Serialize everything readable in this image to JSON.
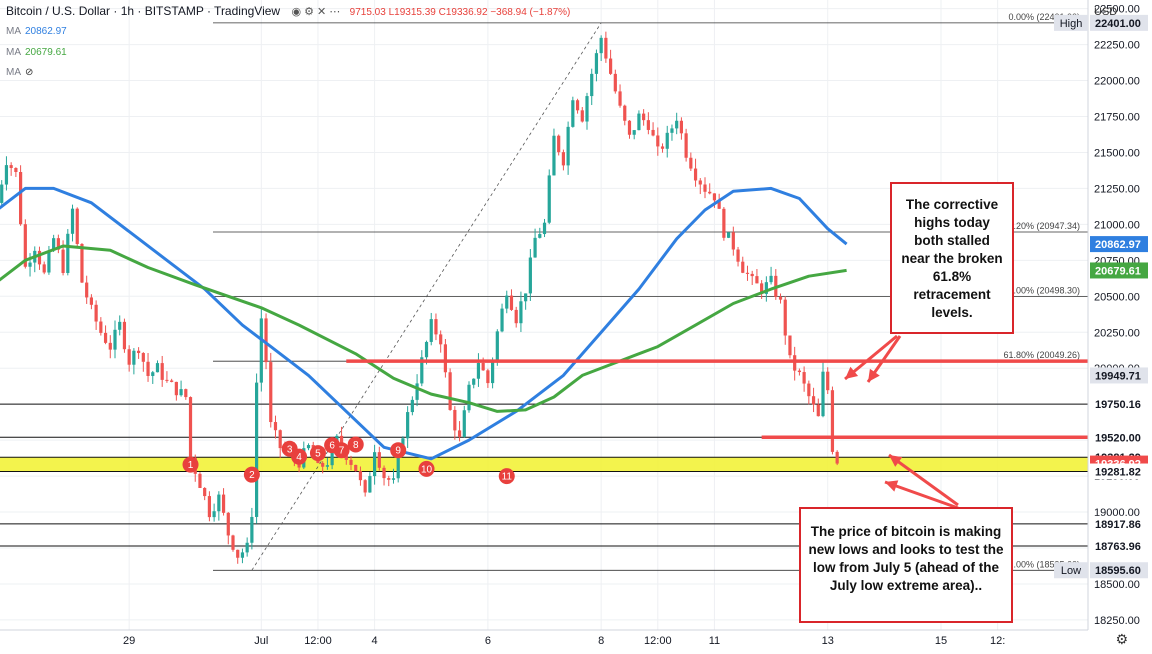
{
  "header": {
    "title": "Bitcoin / U.S. Dollar · 1h · BITSTAMP · TradingView",
    "ohlc": "9715.03 L19315.39 C19336.92 −368.94 (−1.87%)"
  },
  "indicators": [
    {
      "label": "MA",
      "value": "20862.97",
      "color": "#2f7fe0"
    },
    {
      "label": "MA",
      "value": "20679.61",
      "color": "#45a742"
    },
    {
      "label": "MA",
      "value": "",
      "color": "#888888"
    }
  ],
  "currency_label": "USD",
  "chart_data": {
    "type": "candlestick",
    "ylim": [
      18180,
      22560
    ],
    "y_ticks": [
      18250,
      18500,
      18750,
      19000,
      19250,
      19500,
      19750,
      20000,
      20250,
      20500,
      20750,
      21000,
      21250,
      21500,
      21750,
      22000,
      22250,
      22500
    ],
    "y_tick_labels": [
      "18250.00",
      "18500.00",
      "18750.00",
      "19000.00",
      "19250.00",
      "19500.00",
      "19750.00",
      "20000.00",
      "20250.00",
      "20500.00",
      "20750.00",
      "21000.00",
      "21250.00",
      "21500.00",
      "21750.00",
      "22000.00",
      "22250.00",
      "22500.00"
    ],
    "x_ticks": [
      {
        "label": "29",
        "t": 28
      },
      {
        "label": "Jul",
        "t": 56
      },
      {
        "label": "12:00",
        "t": 68
      },
      {
        "label": "4",
        "t": 80
      },
      {
        "label": "6",
        "t": 104
      },
      {
        "label": "8",
        "t": 128
      },
      {
        "label": "12:00",
        "t": 140
      },
      {
        "label": "11",
        "t": 152
      },
      {
        "label": "13",
        "t": 176
      },
      {
        "label": "15",
        "t": 200
      },
      {
        "label": "12:",
        "t": 212
      }
    ],
    "ohlc_path": [
      [
        0,
        21150
      ],
      [
        2,
        21450
      ],
      [
        4,
        21350
      ],
      [
        6,
        20700
      ],
      [
        8,
        20850
      ],
      [
        10,
        20650
      ],
      [
        12,
        20900
      ],
      [
        14,
        20700
      ],
      [
        16,
        21100
      ],
      [
        18,
        20600
      ],
      [
        20,
        20400
      ],
      [
        22,
        20250
      ],
      [
        24,
        20150
      ],
      [
        26,
        20300
      ],
      [
        28,
        20050
      ],
      [
        30,
        20150
      ],
      [
        32,
        19950
      ],
      [
        34,
        20000
      ],
      [
        36,
        19900
      ],
      [
        38,
        19850
      ],
      [
        40,
        19800
      ],
      [
        41,
        19380
      ],
      [
        43,
        19200
      ],
      [
        45,
        19000
      ],
      [
        47,
        19100
      ],
      [
        49,
        18850
      ],
      [
        51,
        18700
      ],
      [
        53,
        18750
      ],
      [
        54,
        19000
      ],
      [
        55,
        19900
      ],
      [
        56,
        20350
      ],
      [
        57,
        20050
      ],
      [
        58,
        19600
      ],
      [
        60,
        19450
      ],
      [
        62,
        19400
      ],
      [
        64,
        19350
      ],
      [
        66,
        19450
      ],
      [
        68,
        19300
      ],
      [
        70,
        19350
      ],
      [
        72,
        19500
      ],
      [
        74,
        19400
      ],
      [
        76,
        19300
      ],
      [
        78,
        19100
      ],
      [
        80,
        19450
      ],
      [
        82,
        19250
      ],
      [
        84,
        19200
      ],
      [
        86,
        19550
      ],
      [
        88,
        19800
      ],
      [
        90,
        20050
      ],
      [
        92,
        20300
      ],
      [
        94,
        20200
      ],
      [
        96,
        19700
      ],
      [
        98,
        19500
      ],
      [
        100,
        19850
      ],
      [
        102,
        20050
      ],
      [
        104,
        19900
      ],
      [
        106,
        20250
      ],
      [
        108,
        20550
      ],
      [
        110,
        20350
      ],
      [
        112,
        20550
      ],
      [
        114,
        20900
      ],
      [
        116,
        21000
      ],
      [
        118,
        21600
      ],
      [
        120,
        21450
      ],
      [
        122,
        21900
      ],
      [
        124,
        21750
      ],
      [
        126,
        22050
      ],
      [
        128,
        22300
      ],
      [
        130,
        22050
      ],
      [
        132,
        21800
      ],
      [
        134,
        21600
      ],
      [
        136,
        21750
      ],
      [
        138,
        21700
      ],
      [
        140,
        21500
      ],
      [
        142,
        21600
      ],
      [
        144,
        21750
      ],
      [
        146,
        21500
      ],
      [
        148,
        21350
      ],
      [
        150,
        21250
      ],
      [
        152,
        21200
      ],
      [
        154,
        20950
      ],
      [
        156,
        20850
      ],
      [
        158,
        20700
      ],
      [
        160,
        20600
      ],
      [
        162,
        20550
      ],
      [
        164,
        20600
      ],
      [
        166,
        20450
      ],
      [
        168,
        20050
      ],
      [
        170,
        19950
      ],
      [
        172,
        19800
      ],
      [
        174,
        19650
      ],
      [
        175,
        19950
      ],
      [
        176,
        19850
      ],
      [
        177,
        19450
      ],
      [
        178,
        19337
      ]
    ],
    "series": [
      {
        "name": "MA 20862.97",
        "color": "#2f7fe0",
        "points": [
          [
            0,
            21100
          ],
          [
            6,
            21250
          ],
          [
            12,
            21250
          ],
          [
            20,
            21150
          ],
          [
            28,
            20950
          ],
          [
            36,
            20750
          ],
          [
            44,
            20550
          ],
          [
            52,
            20300
          ],
          [
            58,
            20150
          ],
          [
            66,
            19950
          ],
          [
            74,
            19700
          ],
          [
            82,
            19450
          ],
          [
            92,
            19370
          ],
          [
            100,
            19500
          ],
          [
            110,
            19700
          ],
          [
            120,
            19950
          ],
          [
            128,
            20250
          ],
          [
            136,
            20550
          ],
          [
            144,
            20900
          ],
          [
            150,
            21100
          ],
          [
            156,
            21230
          ],
          [
            164,
            21250
          ],
          [
            170,
            21180
          ],
          [
            176,
            20970
          ],
          [
            180,
            20863
          ]
        ]
      },
      {
        "name": "MA 20679.61",
        "color": "#45a742",
        "points": [
          [
            0,
            20600
          ],
          [
            6,
            20750
          ],
          [
            14,
            20850
          ],
          [
            24,
            20820
          ],
          [
            32,
            20700
          ],
          [
            42,
            20580
          ],
          [
            56,
            20420
          ],
          [
            64,
            20300
          ],
          [
            76,
            20100
          ],
          [
            84,
            19930
          ],
          [
            92,
            19820
          ],
          [
            100,
            19760
          ],
          [
            106,
            19700
          ],
          [
            112,
            19710
          ],
          [
            118,
            19800
          ],
          [
            124,
            19950
          ],
          [
            132,
            20050
          ],
          [
            140,
            20150
          ],
          [
            148,
            20300
          ],
          [
            156,
            20450
          ],
          [
            164,
            20550
          ],
          [
            172,
            20640
          ],
          [
            180,
            20680
          ]
        ]
      }
    ],
    "fib_lines": [
      {
        "label": "0.00% (22401.00)",
        "value": 22401
      },
      {
        "label": ".20% (20947.34)",
        "value": 20947
      },
      {
        "label": ".00% (20498.30)",
        "value": 20498
      },
      {
        "label": "61.80% (20049.26)",
        "value": 20049
      },
      {
        "label": ".00% (18595.60)",
        "value": 18595
      }
    ],
    "horizontal_levels": [
      19750.16,
      19520.0,
      19381.29,
      19281.82,
      18917.86,
      18763.96
    ],
    "support_zone": [
      19281.82,
      19381.29
    ],
    "red_levels": [
      {
        "value": 20049.26,
        "t_start": 74
      },
      {
        "value": 19520.0,
        "t_start": 162
      }
    ],
    "trendline": {
      "from": [
        54,
        18595.6
      ],
      "to": [
        128,
        22401.0
      ]
    },
    "circles": [
      {
        "label": "1",
        "t": 41,
        "v": 19330
      },
      {
        "label": "2",
        "t": 54,
        "v": 19260
      },
      {
        "label": "3",
        "t": 62,
        "v": 19440
      },
      {
        "label": "4",
        "t": 64,
        "v": 19385
      },
      {
        "label": "5",
        "t": 68,
        "v": 19410
      },
      {
        "label": "6",
        "t": 71,
        "v": 19465
      },
      {
        "label": "7",
        "t": 73,
        "v": 19430
      },
      {
        "label": "8",
        "t": 76,
        "v": 19470
      },
      {
        "label": "9",
        "t": 85,
        "v": 19430
      },
      {
        "label": "10",
        "t": 91,
        "v": 19300
      },
      {
        "label": "11",
        "t": 108,
        "v": 19250
      }
    ],
    "price_labels": [
      {
        "value": 22401.0,
        "text": "22401.00",
        "tag": "High",
        "style": "gray"
      },
      {
        "value": 20862.97,
        "text": "20862.97",
        "style": "blue"
      },
      {
        "value": 20679.61,
        "text": "20679.61",
        "style": "green"
      },
      {
        "value": 19949.71,
        "text": "19949.71",
        "style": "gray"
      },
      {
        "value": 19750.16,
        "text": "19750.16",
        "style": "white"
      },
      {
        "value": 19520.0,
        "text": "19520.00",
        "style": "white"
      },
      {
        "value": 19381.29,
        "text": "19381.29",
        "style": "white"
      },
      {
        "value": 19336.92,
        "text": "19336.92",
        "style": "red"
      },
      {
        "value": 19281.82,
        "text": "19281.82",
        "style": "white"
      },
      {
        "value": 18917.86,
        "text": "18917.86",
        "style": "white"
      },
      {
        "value": 18763.96,
        "text": "18763.96",
        "style": "white"
      },
      {
        "value": 18595.6,
        "text": "18595.60",
        "tag": "Low",
        "style": "gray"
      }
    ]
  },
  "callouts": [
    {
      "text": "The corrective highs today both stalled near the broken 61.8% retracement levels."
    },
    {
      "text": "The price of bitcoin is making new lows and looks to test the low from July 5 (ahead of the July low extreme area).."
    }
  ]
}
